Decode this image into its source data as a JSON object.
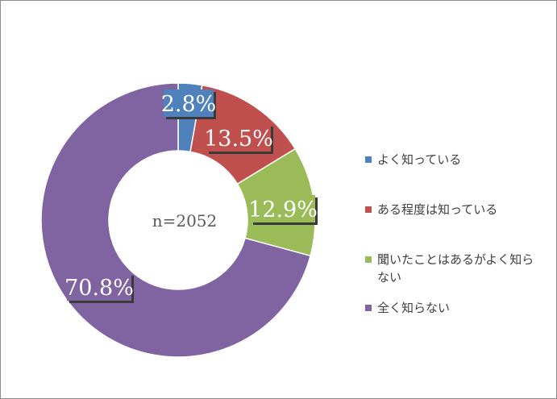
{
  "chart_data": {
    "type": "pie",
    "variant": "donut",
    "center_label": "n=2052",
    "legend_position": "right",
    "slices": [
      {
        "label": "よく知っている",
        "value": 2.8,
        "display": "2.8%",
        "color": "#4f81bd"
      },
      {
        "label": "ある程度は知っている",
        "value": 13.5,
        "display": "13.5%",
        "color": "#c0504d"
      },
      {
        "label": "聞いたことはあるがよく知らない",
        "value": 12.9,
        "display": "12.9%",
        "color": "#9bbb59"
      },
      {
        "label": "全く知らない",
        "value": 70.8,
        "display": "70.8%",
        "color": "#8064a2"
      }
    ]
  }
}
